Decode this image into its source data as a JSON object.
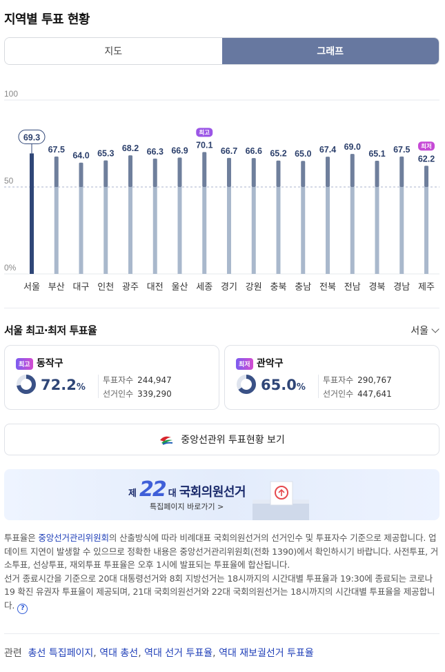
{
  "title": "지역별 투표 현황",
  "tabs": [
    {
      "label": "지도",
      "active": false
    },
    {
      "label": "그래프",
      "active": true
    }
  ],
  "chart_data": {
    "type": "bar",
    "ylim": [
      0,
      100
    ],
    "y_ticks": [
      "100",
      "50",
      "0%"
    ],
    "categories": [
      "서울",
      "부산",
      "대구",
      "인천",
      "광주",
      "대전",
      "울산",
      "세종",
      "경기",
      "강원",
      "충북",
      "충남",
      "전북",
      "전남",
      "경북",
      "경남",
      "제주"
    ],
    "values": [
      69.3,
      67.5,
      64.0,
      65.3,
      68.2,
      66.3,
      66.9,
      70.1,
      66.7,
      66.6,
      65.2,
      65.0,
      67.4,
      69.0,
      65.1,
      67.5,
      62.2
    ],
    "value_labels": [
      "69.3",
      "67.5",
      "64.0",
      "65.3",
      "68.2",
      "66.3",
      "66.9",
      "70.1",
      "66.7",
      "66.6",
      "65.2",
      "65.0",
      "67.4",
      "69.0",
      "65.1",
      "67.5",
      "62.2"
    ],
    "selected": "서울",
    "max_badge": {
      "category": "세종",
      "label": "최고"
    },
    "min_badge": {
      "category": "제주",
      "label": "최저"
    },
    "reference_line": 50,
    "colors": {
      "selected": "#2f4677",
      "upper": "#6f7f9c",
      "lower": "#a9b8cc",
      "text": "#2b3f6b"
    }
  },
  "section": {
    "title": "서울 최고·최저 투표율",
    "region": "서울"
  },
  "cards": [
    {
      "badge": "최고",
      "name": "동작구",
      "rate": 72.2,
      "rate_text": "72.2",
      "unit": "%",
      "voters_label": "투표자수",
      "voters": "244,947",
      "electorate_label": "선거인수",
      "electorate": "339,290",
      "badge_color": "#8a52e8"
    },
    {
      "badge": "최저",
      "name": "관악구",
      "rate": 65.0,
      "rate_text": "65.0",
      "unit": "%",
      "voters_label": "투표자수",
      "voters": "290,767",
      "electorate_label": "선거인수",
      "electorate": "447,641",
      "badge_color": "#c64ad6"
    }
  ],
  "nec_button": "중앙선관위 투표현황 보기",
  "banner": {
    "je": "제",
    "number": "22",
    "dae": "대",
    "name": "국회의원선거",
    "sub": "특집페이지 바로가기 >"
  },
  "notice": {
    "p1a": "투표율은 ",
    "p1link": "중앙선거관리위원회",
    "p1b": "의 산출방식에 따라 비례대표 국회의원선거의 선거인수 및 투표자수 기준으로 제공합니다. 업데이트 지연이 발생할 수 있으므로 정확한 내용은 중앙선거관리위원회(전화 1390)에서 확인하시기 바랍니다. 사전투표, 거소투표, 선상투표, 재외투표 투표율은 오후 1시에 발표되는 투표율에 합산됩니다.",
    "p2": "선거 종료시간을 기준으로 20대 대통령선거와 8회 지방선거는 18시까지의 시간대별 투표율과 19:30에 종료되는 코로나 19 확진 유권자 투표율이 제공되며, 21대 국회의원선거와 22대 국회의원선거는 18시까지의 시간대별 투표율을 제공합니다.",
    "help": "?"
  },
  "related": {
    "label": "관련",
    "links": [
      "총선 특집페이지",
      "역대 총선",
      "역대 선거 투표율",
      "역대 재보궐선거 투표율"
    ],
    "sep": ", "
  }
}
